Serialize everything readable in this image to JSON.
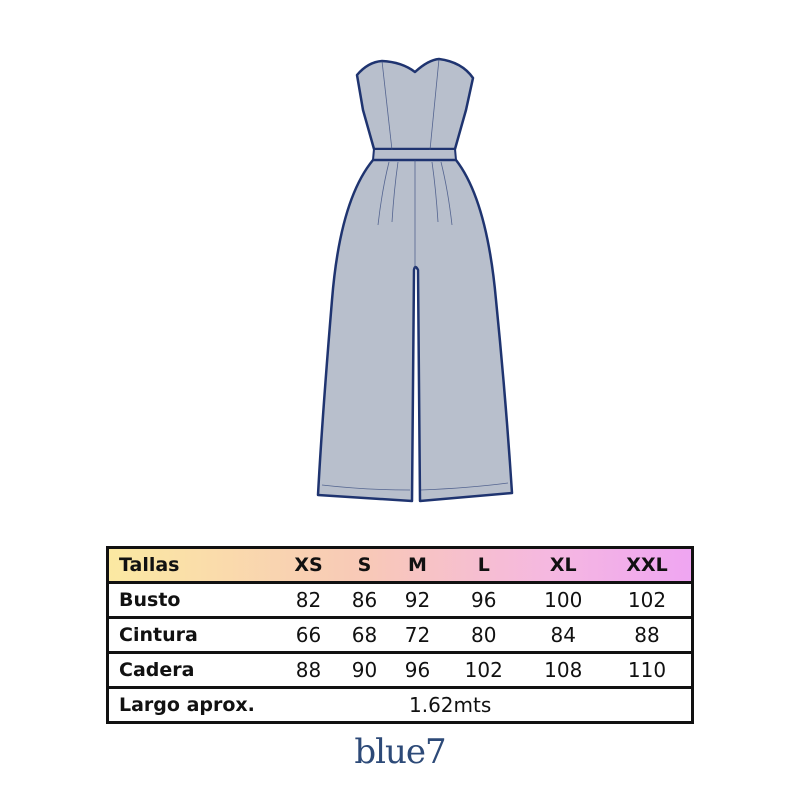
{
  "garment": {
    "fill": "#b8bfcc",
    "stroke": "#1f3470"
  },
  "size_table": {
    "header": {
      "label": "Tallas",
      "sizes": [
        "XS",
        "S",
        "M",
        "L",
        "XL",
        "XXL"
      ]
    },
    "rows": [
      {
        "label": "Busto",
        "values": [
          "82",
          "86",
          "92",
          "96",
          "100",
          "102"
        ]
      },
      {
        "label": "Cintura",
        "values": [
          "66",
          "68",
          "72",
          "80",
          "84",
          "88"
        ]
      },
      {
        "label": "Cadera",
        "values": [
          "88",
          "90",
          "96",
          "102",
          "108",
          "110"
        ]
      }
    ],
    "length": {
      "label": "Largo aprox.",
      "value": "1.62mts"
    }
  },
  "brand": {
    "logo": "blue7",
    "color": "#2d4a78"
  }
}
